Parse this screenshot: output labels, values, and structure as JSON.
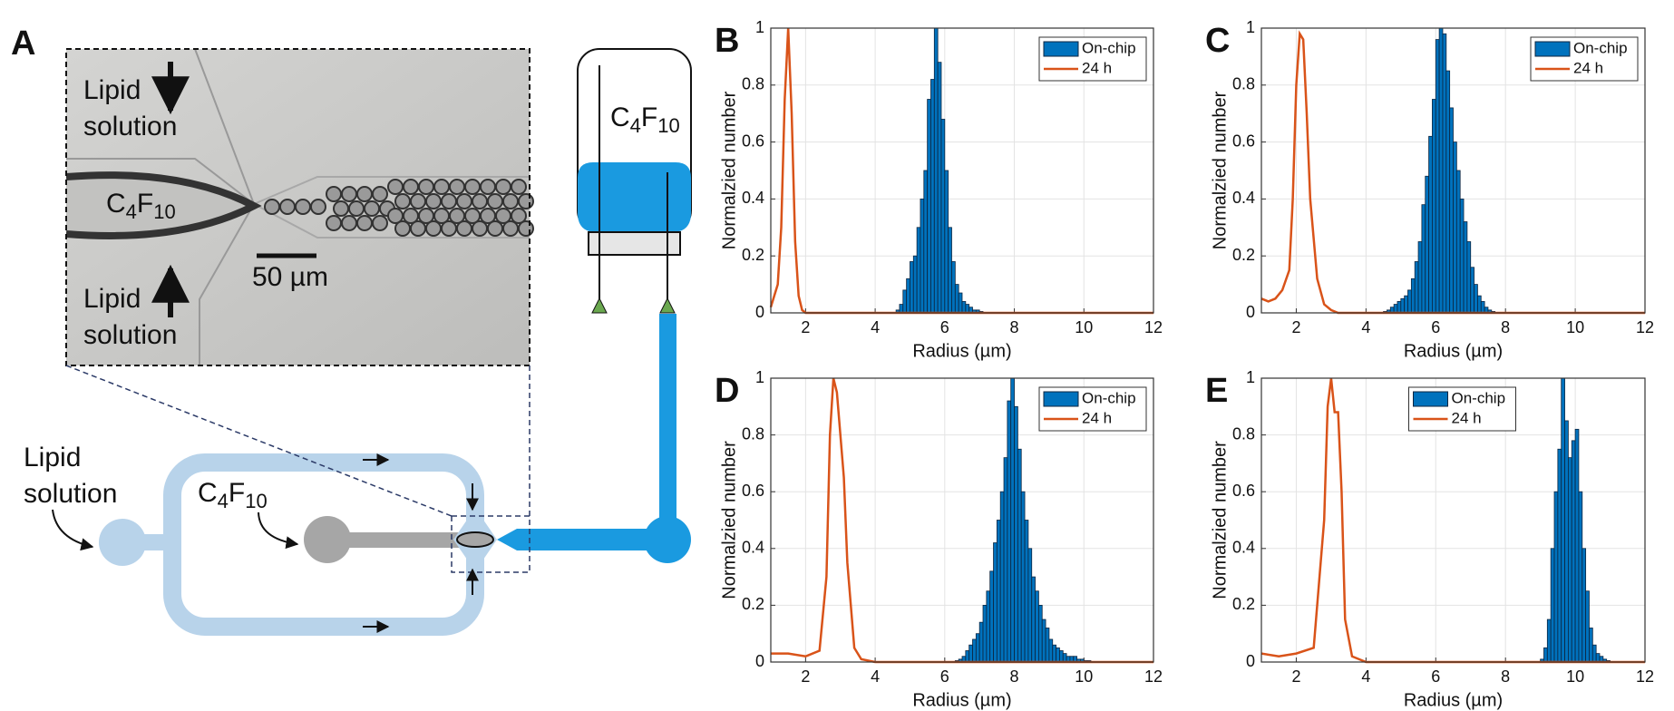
{
  "diagram": {
    "panel_label": "A",
    "micrograph_lipid_top": [
      "Lipid",
      "solution"
    ],
    "micrograph_lipid_bottom": [
      "Lipid",
      "solution"
    ],
    "micrograph_gas": [
      "C",
      "4",
      "F",
      "10"
    ],
    "scale_bar": "50 µm",
    "canister_gas": [
      "C",
      "4",
      "F",
      "10"
    ],
    "chip_lipid": [
      "Lipid",
      "solution"
    ],
    "chip_gas": [
      "C",
      "4",
      "F",
      "10"
    ]
  },
  "chart_data": [
    {
      "type": "histogram",
      "panel_label": "B",
      "xlabel": "Radius (µm)",
      "ylabel": "Normalzied number",
      "xlim": [
        1,
        12
      ],
      "ylim": [
        0,
        1
      ],
      "xticks": [
        2,
        4,
        6,
        8,
        10,
        12
      ],
      "yticks": [
        0,
        0.2,
        0.4,
        0.6,
        0.8,
        1
      ],
      "grid": true,
      "legend": "upper right",
      "series": [
        {
          "name": "On-chip",
          "type": "histogram",
          "color": "#0072bd",
          "bins": [
            4.6,
            4.7,
            4.8,
            4.9,
            5.0,
            5.1,
            5.2,
            5.3,
            5.4,
            5.5,
            5.6,
            5.7,
            5.8,
            5.9,
            6.0,
            6.1,
            6.2,
            6.3,
            6.4,
            6.5,
            6.6,
            6.7,
            6.8,
            6.9,
            7.0,
            7.1
          ],
          "values": [
            0.01,
            0.03,
            0.08,
            0.12,
            0.18,
            0.2,
            0.3,
            0.4,
            0.5,
            0.75,
            0.82,
            1.0,
            0.88,
            0.68,
            0.5,
            0.3,
            0.18,
            0.1,
            0.07,
            0.04,
            0.03,
            0.02,
            0.01,
            0.01,
            0.005
          ]
        },
        {
          "name": "24 h",
          "type": "line",
          "color": "#d95319",
          "x": [
            1,
            1.1,
            1.2,
            1.3,
            1.4,
            1.5,
            1.6,
            1.7,
            1.8,
            1.9,
            2.0,
            2.5,
            12
          ],
          "values": [
            0.02,
            0.06,
            0.1,
            0.3,
            0.75,
            1.0,
            0.7,
            0.25,
            0.06,
            0.01,
            0,
            0,
            0
          ]
        }
      ]
    },
    {
      "type": "histogram",
      "panel_label": "C",
      "xlabel": "Radius (µm)",
      "ylabel": "Normalzied number",
      "xlim": [
        1,
        12
      ],
      "ylim": [
        0,
        1
      ],
      "xticks": [
        2,
        4,
        6,
        8,
        10,
        12
      ],
      "yticks": [
        0,
        0.2,
        0.4,
        0.6,
        0.8,
        1
      ],
      "grid": true,
      "legend": "upper right",
      "series": [
        {
          "name": "On-chip",
          "type": "histogram",
          "color": "#0072bd",
          "bins": [
            4.5,
            4.6,
            4.7,
            4.8,
            4.9,
            5.0,
            5.1,
            5.2,
            5.3,
            5.4,
            5.5,
            5.6,
            5.7,
            5.8,
            5.9,
            6.0,
            6.1,
            6.2,
            6.3,
            6.4,
            6.5,
            6.6,
            6.7,
            6.8,
            6.9,
            7.0,
            7.1,
            7.2,
            7.3,
            7.4,
            7.5,
            7.6,
            7.7
          ],
          "values": [
            0.005,
            0.01,
            0.02,
            0.03,
            0.04,
            0.05,
            0.06,
            0.08,
            0.12,
            0.18,
            0.25,
            0.38,
            0.48,
            0.62,
            0.75,
            0.96,
            1.0,
            0.98,
            0.85,
            0.72,
            0.6,
            0.5,
            0.4,
            0.32,
            0.25,
            0.16,
            0.1,
            0.06,
            0.04,
            0.02,
            0.01,
            0.005
          ]
        },
        {
          "name": "24 h",
          "type": "line",
          "color": "#d95319",
          "x": [
            1,
            1.2,
            1.4,
            1.6,
            1.8,
            1.9,
            2.0,
            2.1,
            2.2,
            2.3,
            2.4,
            2.6,
            2.8,
            3.0,
            3.2,
            12
          ],
          "values": [
            0.05,
            0.04,
            0.05,
            0.08,
            0.15,
            0.4,
            0.8,
            0.98,
            0.96,
            0.7,
            0.4,
            0.12,
            0.03,
            0.01,
            0,
            0
          ]
        }
      ]
    },
    {
      "type": "histogram",
      "panel_label": "D",
      "xlabel": "Radius (µm)",
      "ylabel": "Normalzied number",
      "xlim": [
        1,
        12
      ],
      "ylim": [
        0,
        1
      ],
      "xticks": [
        2,
        4,
        6,
        8,
        10,
        12
      ],
      "yticks": [
        0,
        0.2,
        0.4,
        0.6,
        0.8,
        1
      ],
      "grid": true,
      "legend": "upper right",
      "series": [
        {
          "name": "On-chip",
          "type": "histogram",
          "color": "#0072bd",
          "bins": [
            6.3,
            6.4,
            6.5,
            6.6,
            6.7,
            6.8,
            6.9,
            7.0,
            7.1,
            7.2,
            7.3,
            7.4,
            7.5,
            7.6,
            7.7,
            7.8,
            7.9,
            8.0,
            8.1,
            8.2,
            8.3,
            8.4,
            8.5,
            8.6,
            8.7,
            8.8,
            8.9,
            9.0,
            9.1,
            9.2,
            9.3,
            9.4,
            9.5,
            9.6,
            9.7,
            9.8,
            9.9,
            10.0,
            10.1,
            10.2
          ],
          "values": [
            0.005,
            0.01,
            0.02,
            0.04,
            0.06,
            0.08,
            0.1,
            0.14,
            0.2,
            0.25,
            0.32,
            0.42,
            0.5,
            0.6,
            0.72,
            0.92,
            1.0,
            0.9,
            0.75,
            0.6,
            0.5,
            0.4,
            0.3,
            0.25,
            0.2,
            0.15,
            0.12,
            0.08,
            0.06,
            0.05,
            0.04,
            0.03,
            0.02,
            0.02,
            0.02,
            0.01,
            0.01,
            0.005,
            0.005
          ]
        },
        {
          "name": "24 h",
          "type": "line",
          "color": "#d95319",
          "x": [
            1,
            1.5,
            2.0,
            2.4,
            2.6,
            2.7,
            2.8,
            2.9,
            3.0,
            3.1,
            3.2,
            3.4,
            3.6,
            4.0,
            12
          ],
          "values": [
            0.03,
            0.03,
            0.02,
            0.04,
            0.3,
            0.8,
            1.0,
            0.95,
            0.8,
            0.65,
            0.35,
            0.05,
            0.01,
            0,
            0
          ]
        }
      ]
    },
    {
      "type": "histogram",
      "panel_label": "E",
      "xlabel": "Radius (µm)",
      "ylabel": "Normalzied number",
      "xlim": [
        1,
        12
      ],
      "ylim": [
        0,
        1
      ],
      "xticks": [
        2,
        4,
        6,
        8,
        10,
        12
      ],
      "yticks": [
        0,
        0.2,
        0.4,
        0.6,
        0.8,
        1
      ],
      "grid": true,
      "legend": "upper center",
      "series": [
        {
          "name": "On-chip",
          "type": "histogram",
          "color": "#0072bd",
          "bins": [
            9.0,
            9.1,
            9.2,
            9.3,
            9.4,
            9.5,
            9.6,
            9.7,
            9.8,
            9.9,
            10.0,
            10.1,
            10.2,
            10.3,
            10.4,
            10.5,
            10.6,
            10.7,
            10.8,
            10.9,
            11.0
          ],
          "values": [
            0.01,
            0.05,
            0.15,
            0.4,
            0.6,
            0.75,
            1.0,
            0.85,
            0.72,
            0.78,
            0.82,
            0.6,
            0.4,
            0.25,
            0.12,
            0.06,
            0.03,
            0.02,
            0.01,
            0.005
          ]
        },
        {
          "name": "24 h",
          "type": "line",
          "color": "#d95319",
          "x": [
            1,
            1.5,
            2.0,
            2.5,
            2.8,
            2.9,
            3.0,
            3.1,
            3.2,
            3.3,
            3.4,
            3.6,
            3.8,
            4.0,
            12
          ],
          "values": [
            0.03,
            0.02,
            0.03,
            0.05,
            0.5,
            0.9,
            1.0,
            0.88,
            0.88,
            0.6,
            0.15,
            0.02,
            0.01,
            0,
            0
          ]
        }
      ]
    }
  ]
}
